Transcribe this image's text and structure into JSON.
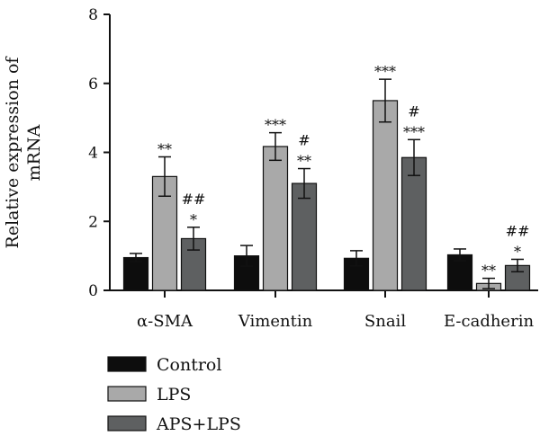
{
  "chart_data": {
    "type": "bar",
    "ylabel_lines": [
      "Relative expression of",
      "mRNA"
    ],
    "ylim": [
      0,
      8
    ],
    "yticks": [
      0,
      2,
      4,
      6,
      8
    ],
    "categories": [
      "α-SMA",
      "Vimentin",
      "Snail",
      "E-cadherin"
    ],
    "series": [
      {
        "name": "Control",
        "color": "#0d0d0d",
        "values": [
          0.95,
          1.0,
          0.93,
          1.03
        ],
        "errors": [
          0.12,
          0.3,
          0.22,
          0.17
        ],
        "annotations": [
          "",
          "",
          "",
          ""
        ]
      },
      {
        "name": "LPS",
        "color": "#a9a9a9",
        "values": [
          3.3,
          4.17,
          5.5,
          0.2
        ],
        "errors": [
          0.57,
          0.4,
          0.62,
          0.15
        ],
        "annotations": [
          "**",
          "***",
          "***",
          "**"
        ]
      },
      {
        "name": "APS+LPS",
        "color": "#5e6061",
        "values": [
          1.5,
          3.1,
          3.85,
          0.72
        ],
        "errors": [
          0.33,
          0.43,
          0.52,
          0.18
        ],
        "annotations": [
          "##\n*",
          "#\n**",
          "#\n***",
          "##\n*"
        ]
      }
    ],
    "grid": false,
    "legend_position": "bottom-left"
  }
}
